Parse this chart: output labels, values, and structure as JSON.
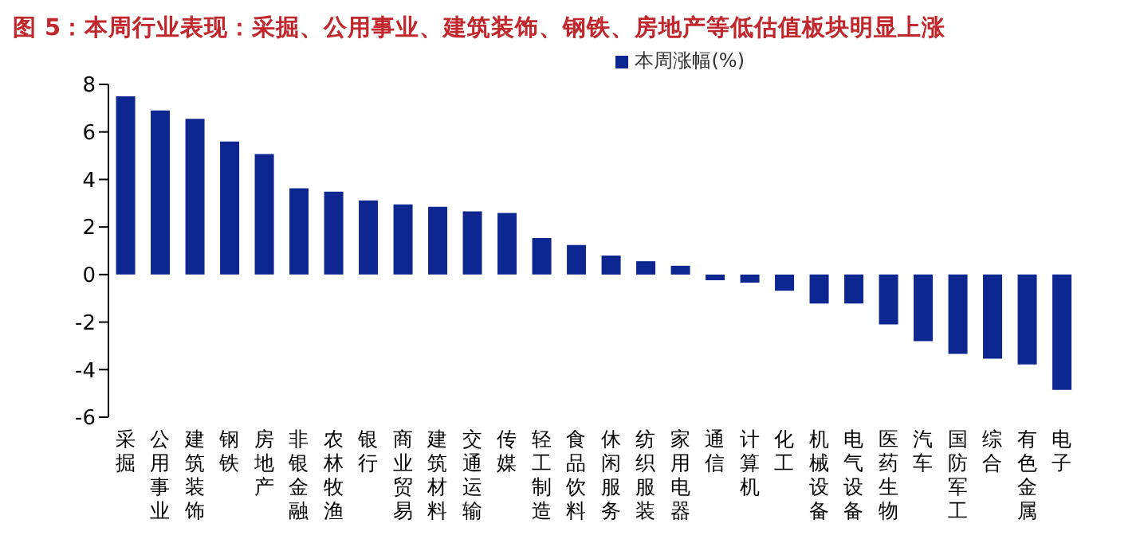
{
  "chart_data": {
    "type": "bar",
    "title": "图 5：本周行业表现：采掘、公用事业、建筑装饰、钢铁、房地产等低估值板块明显上涨",
    "categories": [
      "采掘",
      "公用事业",
      "建筑装饰",
      "钢铁",
      "房地产",
      "非银金融",
      "农林牧渔",
      "银行",
      "商业贸易",
      "建筑材料",
      "交通运输",
      "传媒",
      "轻工制造",
      "食品饮料",
      "休闲服务",
      "纺织服装",
      "家用电器",
      "通信",
      "计算机",
      "化工",
      "机械设备",
      "电气设备",
      "医药生物",
      "汽车",
      "国防军工",
      "综合",
      "有色金属",
      "电子"
    ],
    "series": [
      {
        "name": "本周涨幅(%)",
        "color": "#0d2690",
        "values": [
          7.5,
          6.9,
          6.55,
          5.6,
          5.07,
          3.63,
          3.49,
          3.12,
          2.95,
          2.85,
          2.66,
          2.59,
          1.54,
          1.24,
          0.8,
          0.56,
          0.37,
          -0.24,
          -0.34,
          -0.68,
          -1.22,
          -1.22,
          -2.1,
          -2.8,
          -3.34,
          -3.54,
          -3.78,
          -4.85
        ]
      }
    ],
    "ylim": [
      -6,
      8
    ],
    "yticks": [
      -6,
      -4,
      -2,
      0,
      2,
      4,
      6,
      8
    ],
    "grid": false,
    "legend": "top right"
  }
}
